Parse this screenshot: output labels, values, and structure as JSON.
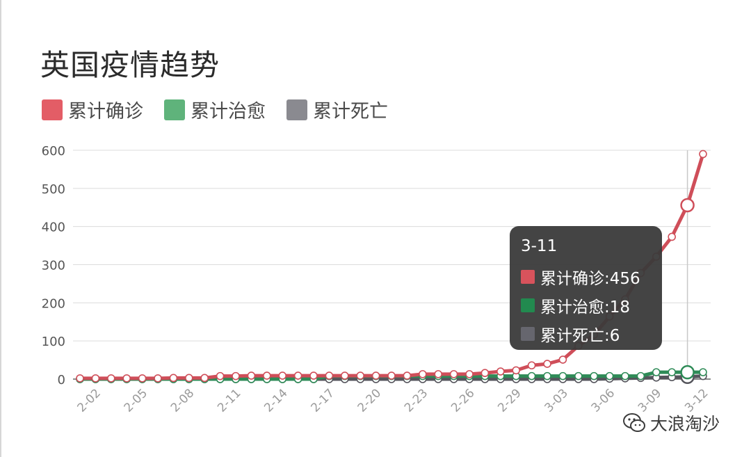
{
  "colors": {
    "confirmed": "#cf4e59",
    "recovered": "#2e8b57",
    "deaths": "#6a6a72",
    "grid": "#dcdcdc",
    "axis": "#555555"
  },
  "chart_data": {
    "type": "line",
    "title": "英国疫情趋势",
    "legend": {
      "position": "top-left",
      "items": [
        {
          "name": "累计确诊",
          "color": "#e35d66"
        },
        {
          "name": "累计治愈",
          "color": "#5fb37b"
        },
        {
          "name": "累计死亡",
          "color": "#8a8a90"
        }
      ]
    },
    "ylim": [
      0,
      600
    ],
    "yticks": [
      0,
      100,
      200,
      300,
      400,
      500,
      600
    ],
    "xticks": [
      "2-02",
      "2-05",
      "2-08",
      "2-11",
      "2-14",
      "2-17",
      "2-20",
      "2-23",
      "2-26",
      "2-29",
      "3-03",
      "3-06",
      "3-09",
      "3-12"
    ],
    "categories": [
      "2-01",
      "2-02",
      "2-03",
      "2-04",
      "2-05",
      "2-06",
      "2-07",
      "2-08",
      "2-09",
      "2-10",
      "2-11",
      "2-12",
      "2-13",
      "2-14",
      "2-15",
      "2-16",
      "2-17",
      "2-18",
      "2-19",
      "2-20",
      "2-21",
      "2-22",
      "2-23",
      "2-24",
      "2-25",
      "2-26",
      "2-27",
      "2-28",
      "2-29",
      "3-01",
      "3-02",
      "3-03",
      "3-04",
      "3-05",
      "3-06",
      "3-07",
      "3-08",
      "3-09",
      "3-10",
      "3-11",
      "3-12"
    ],
    "series": [
      {
        "name": "累计确诊",
        "values": [
          2,
          2,
          2,
          2,
          2,
          2,
          3,
          3,
          3,
          8,
          8,
          9,
          9,
          9,
          9,
          9,
          9,
          9,
          9,
          9,
          9,
          9,
          13,
          13,
          13,
          13,
          16,
          20,
          23,
          36,
          40,
          51,
          87,
          116,
          164,
          209,
          278,
          321,
          373,
          456,
          590
        ]
      },
      {
        "name": "累计治愈",
        "values": [
          0,
          0,
          0,
          0,
          0,
          0,
          0,
          0,
          0,
          0,
          0,
          0,
          0,
          0,
          0,
          0,
          8,
          8,
          8,
          8,
          8,
          8,
          8,
          8,
          8,
          8,
          8,
          8,
          8,
          8,
          8,
          8,
          8,
          8,
          8,
          8,
          8,
          18,
          18,
          18,
          18
        ]
      },
      {
        "name": "累计死亡",
        "values": [
          0,
          0,
          0,
          0,
          0,
          0,
          0,
          0,
          0,
          0,
          0,
          0,
          0,
          0,
          0,
          0,
          0,
          0,
          0,
          0,
          0,
          0,
          0,
          0,
          0,
          0,
          0,
          0,
          0,
          0,
          0,
          0,
          0,
          0,
          1,
          2,
          3,
          4,
          5,
          6,
          8
        ]
      }
    ],
    "highlight": "3-11"
  },
  "tooltip": {
    "title": "3-11",
    "rows": [
      {
        "label": "累计确诊:456",
        "color": "#d8535c"
      },
      {
        "label": "累计治愈:18",
        "color": "#228a4f"
      },
      {
        "label": "累计死亡:6",
        "color": "#66666e"
      }
    ]
  },
  "watermark": {
    "text": "大浪淘沙",
    "icon": "wechat-icon"
  }
}
